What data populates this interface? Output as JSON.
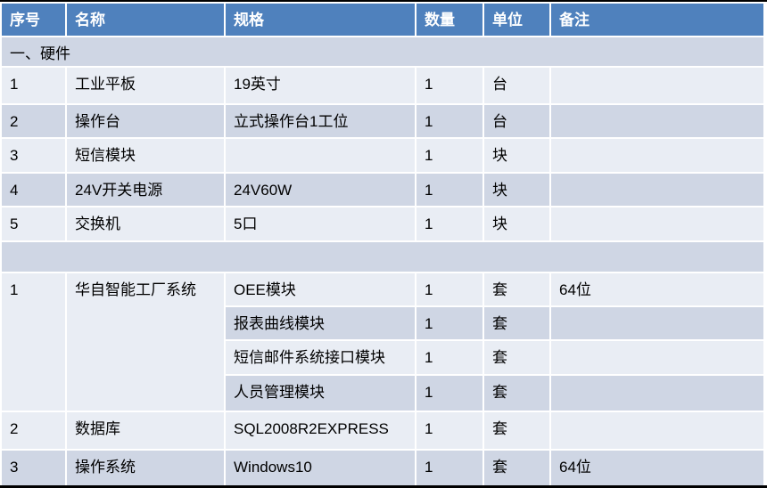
{
  "table": {
    "header": {
      "cols": [
        "序号",
        "名称",
        "规格",
        "数量",
        "单位",
        "备注"
      ]
    },
    "section_hardware": {
      "label": "一、硬件"
    },
    "hardware": [
      {
        "no": "1",
        "name": "工业平板",
        "spec": "19英寸",
        "qty": "1",
        "unit": "台",
        "note": ""
      },
      {
        "no": "2",
        "name": "操作台",
        "spec": "立式操作台1工位",
        "qty": "1",
        "unit": "台",
        "note": ""
      },
      {
        "no": "3",
        "name": "短信模块",
        "spec": "",
        "qty": "1",
        "unit": "块",
        "note": ""
      },
      {
        "no": "4",
        "name": "24V开关电源",
        "spec": "24V60W",
        "qty": "1",
        "unit": "块",
        "note": ""
      },
      {
        "no": "5",
        "name": "交换机",
        "spec": "5口",
        "qty": "1",
        "unit": "块",
        "note": ""
      }
    ],
    "spacer": {
      "label": ""
    },
    "software_group": {
      "no": "1",
      "name": "华自智能工厂系统",
      "modules": [
        {
          "spec": "OEE模块",
          "qty": "1",
          "unit": "套",
          "note": "64位"
        },
        {
          "spec": "报表曲线模块",
          "qty": "1",
          "unit": "套",
          "note": ""
        },
        {
          "spec": "短信邮件系统接口模块",
          "qty": "1",
          "unit": "套",
          "note": ""
        },
        {
          "spec": "人员管理模块",
          "qty": "1",
          "unit": "套",
          "note": ""
        }
      ]
    },
    "software": [
      {
        "no": "2",
        "name": "数据库",
        "spec": "SQL2008R2EXPRESS",
        "qty": "1",
        "unit": "套",
        "note": ""
      },
      {
        "no": "3",
        "name": "操作系统",
        "spec": "Windows10",
        "qty": "1",
        "unit": "套",
        "note": "64位"
      }
    ],
    "colors": {
      "header_bg": "#4F81BD",
      "header_text": "#FFFFFF",
      "band_dark": "#CFD6E4",
      "band_light": "#E9EDF4",
      "grid_line": "#FFFFFF",
      "outer_rule": "#000000",
      "body_text": "#000000"
    }
  }
}
